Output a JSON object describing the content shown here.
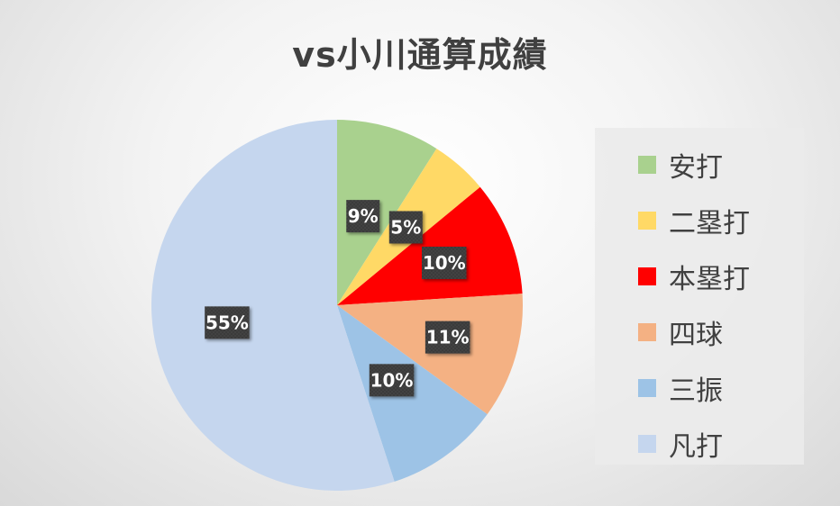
{
  "chart_data": {
    "type": "pie",
    "title": "vs小川通算成績",
    "legend_position": "right",
    "slices": [
      {
        "label": "安打",
        "value": 9,
        "display": "9%",
        "color": "#a9d18e"
      },
      {
        "label": "二塁打",
        "value": 5,
        "display": "5%",
        "color": "#ffd966"
      },
      {
        "label": "本塁打",
        "value": 10,
        "display": "10%",
        "color": "#ff0000"
      },
      {
        "label": "四球",
        "value": 11,
        "display": "11%",
        "color": "#f4b183"
      },
      {
        "label": "三振",
        "value": 10,
        "display": "10%",
        "color": "#9dc3e6"
      },
      {
        "label": "凡打",
        "value": 55,
        "display": "55%",
        "color": "#c5d6ee"
      }
    ]
  }
}
